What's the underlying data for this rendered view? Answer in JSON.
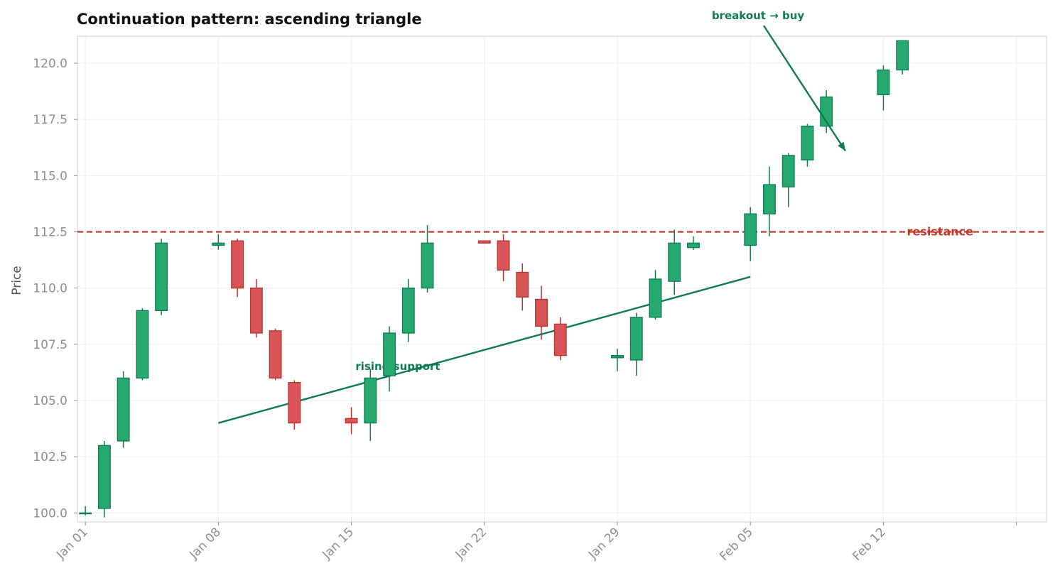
{
  "chart_data": {
    "type": "candlestick",
    "title": "Continuation pattern: ascending triangle",
    "xlabel": "",
    "ylabel": "Price",
    "ylim": [
      99.6,
      121.2
    ],
    "xlim": [
      "2023-12-31 14:00",
      "2024-02-20 14:00"
    ],
    "grid": true,
    "y_ticks": [
      "100.0",
      "102.5",
      "105.0",
      "107.5",
      "110.0",
      "112.5",
      "115.0",
      "117.5",
      "120.0"
    ],
    "x_ticks": [
      {
        "date": "2024-01-01",
        "label": "Jan 01"
      },
      {
        "date": "2024-01-08",
        "label": "Jan 08"
      },
      {
        "date": "2024-01-15",
        "label": "Jan 15"
      },
      {
        "date": "2024-01-22",
        "label": "Jan 22"
      },
      {
        "date": "2024-01-29",
        "label": "Jan 29"
      },
      {
        "date": "2024-02-05",
        "label": "Feb 05"
      },
      {
        "date": "2024-02-12",
        "label": "Feb 12"
      },
      {
        "date": "2024-02-19",
        "label": ""
      }
    ],
    "candles": [
      {
        "date": "2024-01-01",
        "open": 100.0,
        "high": 100.3,
        "low": 99.9,
        "close": 100.0
      },
      {
        "date": "2024-01-02",
        "open": 100.2,
        "high": 103.2,
        "low": 99.8,
        "close": 103.0
      },
      {
        "date": "2024-01-03",
        "open": 103.2,
        "high": 106.3,
        "low": 102.9,
        "close": 106.0
      },
      {
        "date": "2024-01-04",
        "open": 106.0,
        "high": 109.1,
        "low": 105.9,
        "close": 109.0
      },
      {
        "date": "2024-01-05",
        "open": 109.0,
        "high": 112.2,
        "low": 108.8,
        "close": 112.0
      },
      {
        "date": "2024-01-08",
        "open": 111.9,
        "high": 112.4,
        "low": 111.7,
        "close": 112.0
      },
      {
        "date": "2024-01-09",
        "open": 112.1,
        "high": 112.2,
        "low": 109.6,
        "close": 110.0
      },
      {
        "date": "2024-01-10",
        "open": 110.0,
        "high": 110.4,
        "low": 107.8,
        "close": 108.0
      },
      {
        "date": "2024-01-11",
        "open": 108.1,
        "high": 108.2,
        "low": 105.9,
        "close": 106.0
      },
      {
        "date": "2024-01-12",
        "open": 105.8,
        "high": 105.9,
        "low": 103.7,
        "close": 104.0
      },
      {
        "date": "2024-01-15",
        "open": 104.2,
        "high": 104.7,
        "low": 103.5,
        "close": 104.0
      },
      {
        "date": "2024-01-16",
        "open": 104.0,
        "high": 106.4,
        "low": 103.2,
        "close": 106.0
      },
      {
        "date": "2024-01-17",
        "open": 106.1,
        "high": 108.3,
        "low": 105.4,
        "close": 108.0
      },
      {
        "date": "2024-01-18",
        "open": 108.0,
        "high": 110.4,
        "low": 107.6,
        "close": 110.0
      },
      {
        "date": "2024-01-19",
        "open": 110.0,
        "high": 112.8,
        "low": 109.8,
        "close": 112.0
      },
      {
        "date": "2024-01-22",
        "open": 112.1,
        "high": 112.1,
        "low": 112.0,
        "close": 112.0
      },
      {
        "date": "2024-01-23",
        "open": 112.1,
        "high": 112.4,
        "low": 110.3,
        "close": 110.8
      },
      {
        "date": "2024-01-24",
        "open": 110.7,
        "high": 111.1,
        "low": 109.0,
        "close": 109.6
      },
      {
        "date": "2024-01-25",
        "open": 109.5,
        "high": 110.1,
        "low": 107.7,
        "close": 108.3
      },
      {
        "date": "2024-01-26",
        "open": 108.4,
        "high": 108.7,
        "low": 106.8,
        "close": 107.0
      },
      {
        "date": "2024-01-29",
        "open": 106.9,
        "high": 107.3,
        "low": 106.3,
        "close": 107.0
      },
      {
        "date": "2024-01-30",
        "open": 106.8,
        "high": 108.9,
        "low": 106.1,
        "close": 108.7
      },
      {
        "date": "2024-01-31",
        "open": 108.7,
        "high": 110.8,
        "low": 108.6,
        "close": 110.4
      },
      {
        "date": "2024-02-01",
        "open": 110.3,
        "high": 112.6,
        "low": 109.7,
        "close": 112.0
      },
      {
        "date": "2024-02-02",
        "open": 111.8,
        "high": 112.3,
        "low": 111.7,
        "close": 112.0
      },
      {
        "date": "2024-02-05",
        "open": 111.9,
        "high": 113.6,
        "low": 111.2,
        "close": 113.3
      },
      {
        "date": "2024-02-06",
        "open": 113.3,
        "high": 115.4,
        "low": 112.3,
        "close": 114.6
      },
      {
        "date": "2024-02-07",
        "open": 114.5,
        "high": 116.0,
        "low": 113.6,
        "close": 115.9
      },
      {
        "date": "2024-02-08",
        "open": 115.7,
        "high": 117.3,
        "low": 115.4,
        "close": 117.2
      },
      {
        "date": "2024-02-09",
        "open": 117.2,
        "high": 118.8,
        "low": 116.9,
        "close": 118.5
      },
      {
        "date": "2024-02-12",
        "open": 118.6,
        "high": 119.9,
        "low": 117.9,
        "close": 119.7
      },
      {
        "date": "2024-02-13",
        "open": 119.7,
        "high": 121.0,
        "low": 119.5,
        "close": 121.0
      }
    ],
    "resistance": {
      "label": "resistance",
      "y": 112.5
    },
    "support": {
      "label": "rising support",
      "from": {
        "date": "2024-01-08",
        "y": 104.0
      },
      "to": {
        "date": "2024-02-05",
        "y": 110.5
      }
    },
    "breakout": {
      "label": "breakout → buy",
      "target": {
        "date": "2024-02-10",
        "y": 116.1
      }
    },
    "colors": {
      "up": "#26a96c",
      "up_edge": "#0f7a55",
      "down": "#d95555",
      "down_edge": "#b83232",
      "resistance": "#c0392b",
      "support": "#0f7a55"
    }
  }
}
